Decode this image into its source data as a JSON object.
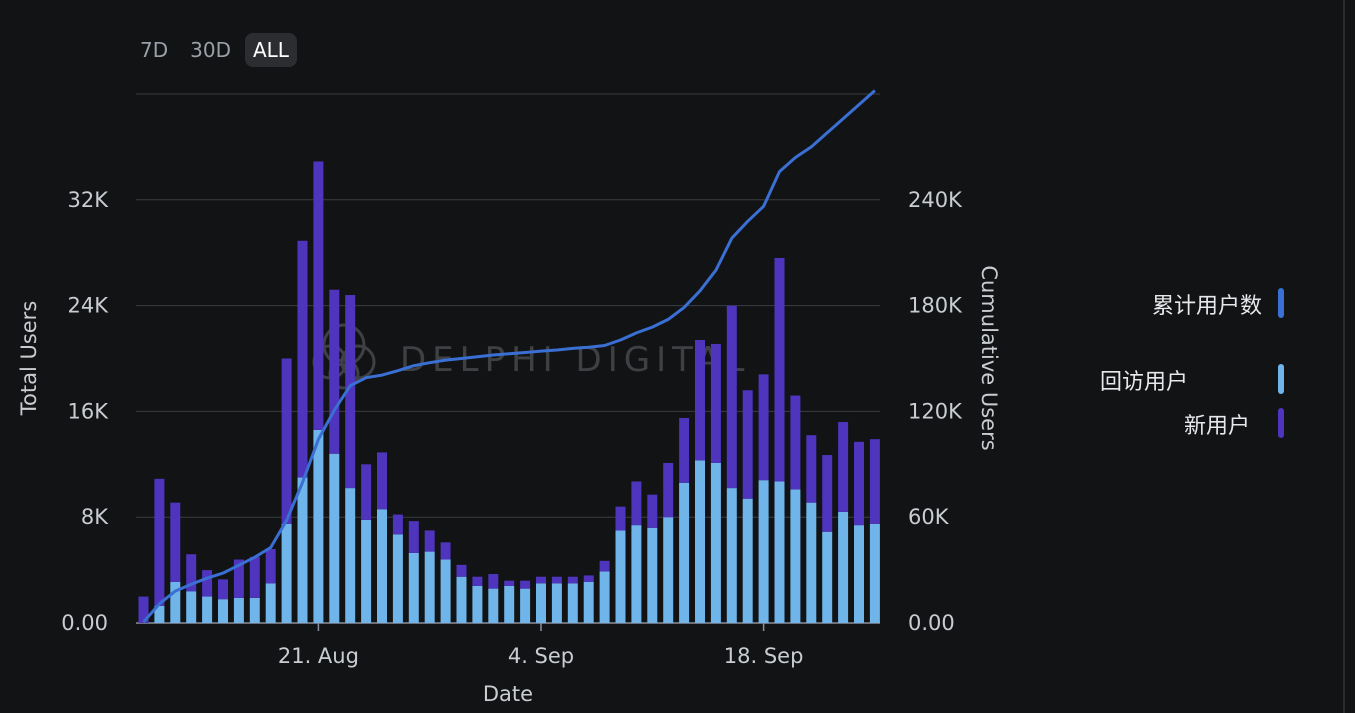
{
  "range_selector": {
    "options": [
      "7D",
      "30D",
      "ALL"
    ],
    "active": "ALL"
  },
  "watermark": "DELPHI DIGITAL",
  "legend": {
    "cumulative": {
      "label": "累计用户数",
      "color": "#3a6fd4"
    },
    "returning": {
      "label": "回访用户",
      "color": "#6fb5ea"
    },
    "new": {
      "label": "新用户",
      "color": "#4f34be"
    }
  },
  "chart_data": {
    "type": "bar",
    "stacked": true,
    "xlabel": "Date",
    "ylabel_left": "Total Users",
    "ylabel_right": "Cumulative Users",
    "ylim_left": [
      0,
      40000
    ],
    "ylim_right": [
      0,
      300000
    ],
    "yticks_left": [
      "0.00",
      "8K",
      "16K",
      "24K",
      "32K"
    ],
    "yticks_right": [
      "0.00",
      "60K",
      "120K",
      "180K",
      "240K"
    ],
    "xtick_labels": [
      {
        "label": "21. Aug",
        "index": 11
      },
      {
        "label": "4. Sep",
        "index": 25
      },
      {
        "label": "18. Sep",
        "index": 39
      }
    ],
    "categories": [
      "10 Aug",
      "11 Aug",
      "12 Aug",
      "13 Aug",
      "14 Aug",
      "15 Aug",
      "16 Aug",
      "17 Aug",
      "18 Aug",
      "19 Aug",
      "20 Aug",
      "21 Aug",
      "22 Aug",
      "23 Aug",
      "24 Aug",
      "25 Aug",
      "26 Aug",
      "27 Aug",
      "28 Aug",
      "29 Aug",
      "30 Aug",
      "31 Aug",
      "1 Sep",
      "2 Sep",
      "3 Sep",
      "4 Sep",
      "5 Sep",
      "6 Sep",
      "7 Sep",
      "8 Sep",
      "9 Sep",
      "10 Sep",
      "11 Sep",
      "12 Sep",
      "13 Sep",
      "14 Sep",
      "15 Sep",
      "16 Sep",
      "17 Sep",
      "18 Sep",
      "19 Sep",
      "20 Sep",
      "21 Sep",
      "22 Sep",
      "23 Sep",
      "24 Sep",
      "25 Sep"
    ],
    "series": [
      {
        "name": "回访用户",
        "axis": "left",
        "values": [
          0,
          1300,
          3100,
          2400,
          2000,
          1800,
          1900,
          1900,
          3000,
          7500,
          11000,
          14600,
          12800,
          10200,
          7800,
          8600,
          6700,
          5300,
          5400,
          4800,
          3500,
          2800,
          2600,
          2800,
          2600,
          3000,
          3000,
          3000,
          3100,
          3900,
          7000,
          7400,
          7200,
          8000,
          10600,
          12300,
          12100,
          10200,
          9400,
          10800,
          10700,
          10100,
          9100,
          6900,
          8400,
          7400,
          7500
        ]
      },
      {
        "name": "新用户",
        "axis": "left",
        "values": [
          2000,
          9600,
          6000,
          2800,
          2000,
          1500,
          2900,
          3100,
          2600,
          12500,
          17900,
          20300,
          12400,
          14600,
          4200,
          4300,
          1500,
          2400,
          1600,
          1300,
          900,
          700,
          1100,
          400,
          600,
          500,
          500,
          500,
          500,
          800,
          1800,
          3300,
          2500,
          4100,
          4900,
          9100,
          9000,
          13800,
          8200,
          8000,
          16900,
          7100,
          5100,
          5800,
          6800,
          6300,
          6400
        ]
      },
      {
        "name": "累计用户数",
        "axis": "right",
        "type": "line",
        "values": [
          500,
          10900,
          18100,
          22000,
          25400,
          28300,
          32800,
          37300,
          42800,
          58200,
          79700,
          104100,
          120700,
          134600,
          139100,
          140600,
          143100,
          145900,
          147600,
          149100,
          150000,
          151000,
          152000,
          152700,
          153400,
          154200,
          154800,
          155700,
          156400,
          157400,
          160500,
          164500,
          167800,
          172200,
          179000,
          188400,
          200100,
          218200,
          227800,
          236300,
          256000,
          264000,
          270000,
          278000,
          286000,
          294000,
          302000
        ]
      }
    ]
  }
}
